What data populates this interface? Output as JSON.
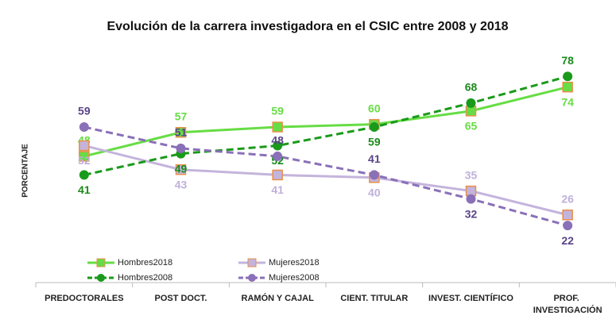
{
  "chart_data": {
    "type": "line",
    "title": "Evolución de la carrera investigadora en el CSIC entre 2008 y 2018",
    "y_label": "PORCENTAJE",
    "categories": [
      "PREDOCTORALES",
      "POST DOCT.",
      "RAMÓN Y CAJAL",
      "CIENT. TITULAR",
      "INVEST. CIENTÍFICO",
      "PROF. INVESTIGACIÓN"
    ],
    "ylim": [
      0,
      90
    ],
    "legend": "lower left",
    "series": [
      {
        "name": "Hombres2018",
        "color": "#66dd44",
        "label_color": "#66dd44",
        "marker": "square",
        "marker_edge": "#e8904a",
        "dashed": false,
        "values": [
          48,
          57,
          59,
          60,
          65,
          74
        ]
      },
      {
        "name": "Mujeres2018",
        "color": "#c4b4dc",
        "label_color": "#bfb0da",
        "marker": "square",
        "marker_edge": "#e8904a",
        "dashed": false,
        "values": [
          52,
          43,
          41,
          40,
          35,
          26
        ]
      },
      {
        "name": "Hombres2008",
        "color": "#1a9a1a",
        "label_color": "#1a8a1a",
        "marker": "circle",
        "marker_edge": "#1a9a1a",
        "dashed": true,
        "values": [
          41,
          49,
          52,
          59,
          68,
          78
        ]
      },
      {
        "name": "Mujeres2008",
        "color": "#8a70b8",
        "label_color": "#5a4488",
        "marker": "circle",
        "marker_edge": "#8a70b8",
        "dashed": true,
        "values": [
          59,
          51,
          48,
          41,
          32,
          22
        ]
      }
    ]
  }
}
